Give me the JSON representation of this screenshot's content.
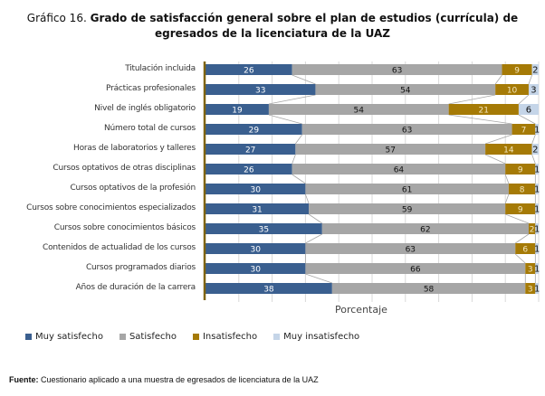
{
  "chart_data": {
    "type": "bar",
    "orientation": "horizontal",
    "stacked": true,
    "title_lead": "Gráfico 16.",
    "title_main": "Grado de satisfacción general sobre el plan de estudios (currícula) de egresados de la licenciatura de la UAZ",
    "title_line1_rest": "Grado de satisfacción general sobre el plan de estudios (currícula) de",
    "title_line2": "egresados de la licenciatura de la UAZ",
    "xlabel": "Porcentaje",
    "ylabel": "",
    "xlim": [
      0,
      100
    ],
    "grid": true,
    "legend_position": "bottom-left",
    "categories": [
      "Titulación incluida",
      "Prácticas profesionales",
      "Nivel de inglés obligatorio",
      "Número total de cursos",
      "Horas de laboratorios y talleres",
      "Cursos optativos de otras disciplinas",
      "Cursos optativos de la profesión",
      "Cursos sobre conocimientos especializados",
      "Cursos sobre conocimientos básicos",
      "Contenidos de actualidad de los cursos",
      "Cursos programados diarios",
      "Años de duración de la carrera"
    ],
    "series": [
      {
        "name": "Muy satisfecho",
        "color": "#3a5f8f",
        "label_color": "#ffffff",
        "values": [
          26,
          33,
          19,
          29,
          27,
          26,
          30,
          31,
          35,
          30,
          30,
          38
        ]
      },
      {
        "name": "Satisfecho",
        "color": "#a6a6a6",
        "label_color": "#111111",
        "values": [
          63,
          54,
          54,
          63,
          57,
          64,
          61,
          59,
          62,
          63,
          66,
          58
        ]
      },
      {
        "name": "Insatisfecho",
        "color": "#a57a06",
        "label_color": "#f2e6c0",
        "values": [
          9,
          10,
          21,
          7,
          14,
          9,
          8,
          9,
          2,
          6,
          3,
          3
        ]
      },
      {
        "name": "Muy insatisfecho",
        "color": "#c5d5e8",
        "label_color": "#111111",
        "values": [
          2,
          3,
          6,
          1,
          2,
          1,
          1,
          1,
          1,
          1,
          1,
          1
        ]
      }
    ]
  },
  "source": {
    "key": "Fuente:",
    "text": " Cuestionario aplicado a una muestra de egresados de licenciatura de la UAZ"
  }
}
